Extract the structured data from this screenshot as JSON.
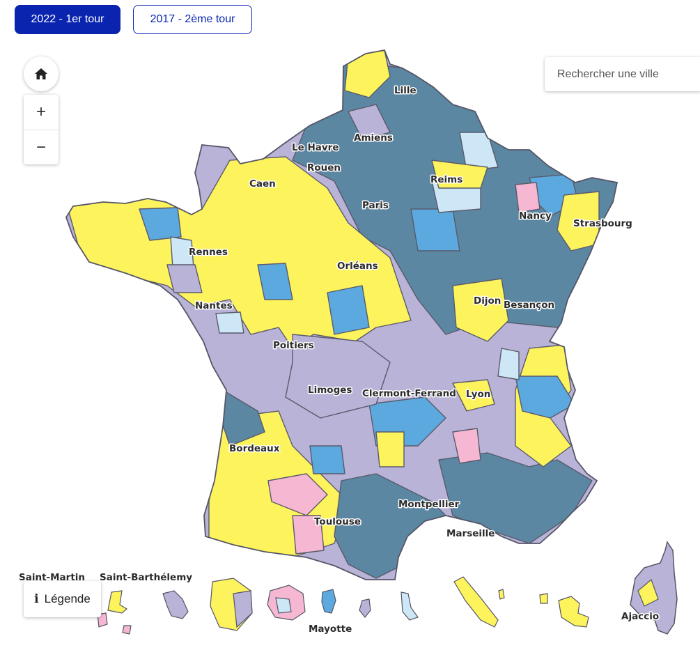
{
  "tabs": [
    {
      "label": "2022 - 1er tour",
      "active": true
    },
    {
      "label": "2017 - 2ème tour",
      "active": false
    }
  ],
  "search": {
    "placeholder": "Rechercher une ville"
  },
  "legend": {
    "label": "Légende",
    "icon": "info-icon"
  },
  "controls": {
    "home_icon": "home-icon",
    "zoom_in": "+",
    "zoom_out": "−"
  },
  "colors": {
    "dark_slate": "#5b87a3",
    "light_blue": "#5ba9df",
    "pale_blue": "#cde7f6",
    "lavender": "#b9b3d8",
    "yellow": "#fdf35c",
    "pink": "#f6b7d2",
    "border": "#5a5a6a"
  },
  "cities": {
    "lille": "Lille",
    "amiens": "Amiens",
    "le_havre": "Le Havre",
    "rouen": "Rouen",
    "caen": "Caen",
    "reims": "Reims",
    "paris": "Paris",
    "nancy": "Nancy",
    "strasbourg": "Strasbourg",
    "rennes": "Rennes",
    "orleans": "Orléans",
    "nantes": "Nantes",
    "dijon": "Dijon",
    "besancon": "Besançon",
    "poitiers": "Poitiers",
    "limoges": "Limoges",
    "clermont": "Clermont-Ferrand",
    "lyon": "Lyon",
    "bordeaux": "Bordeaux",
    "montpellier": "Montpellier",
    "toulouse": "Toulouse",
    "marseille": "Marseille",
    "ajaccio": "Ajaccio"
  },
  "overseas": {
    "saint_martin": "Saint-Martin",
    "saint_barthelemy": "Saint-Barthélemy",
    "mayotte": "Mayotte"
  }
}
